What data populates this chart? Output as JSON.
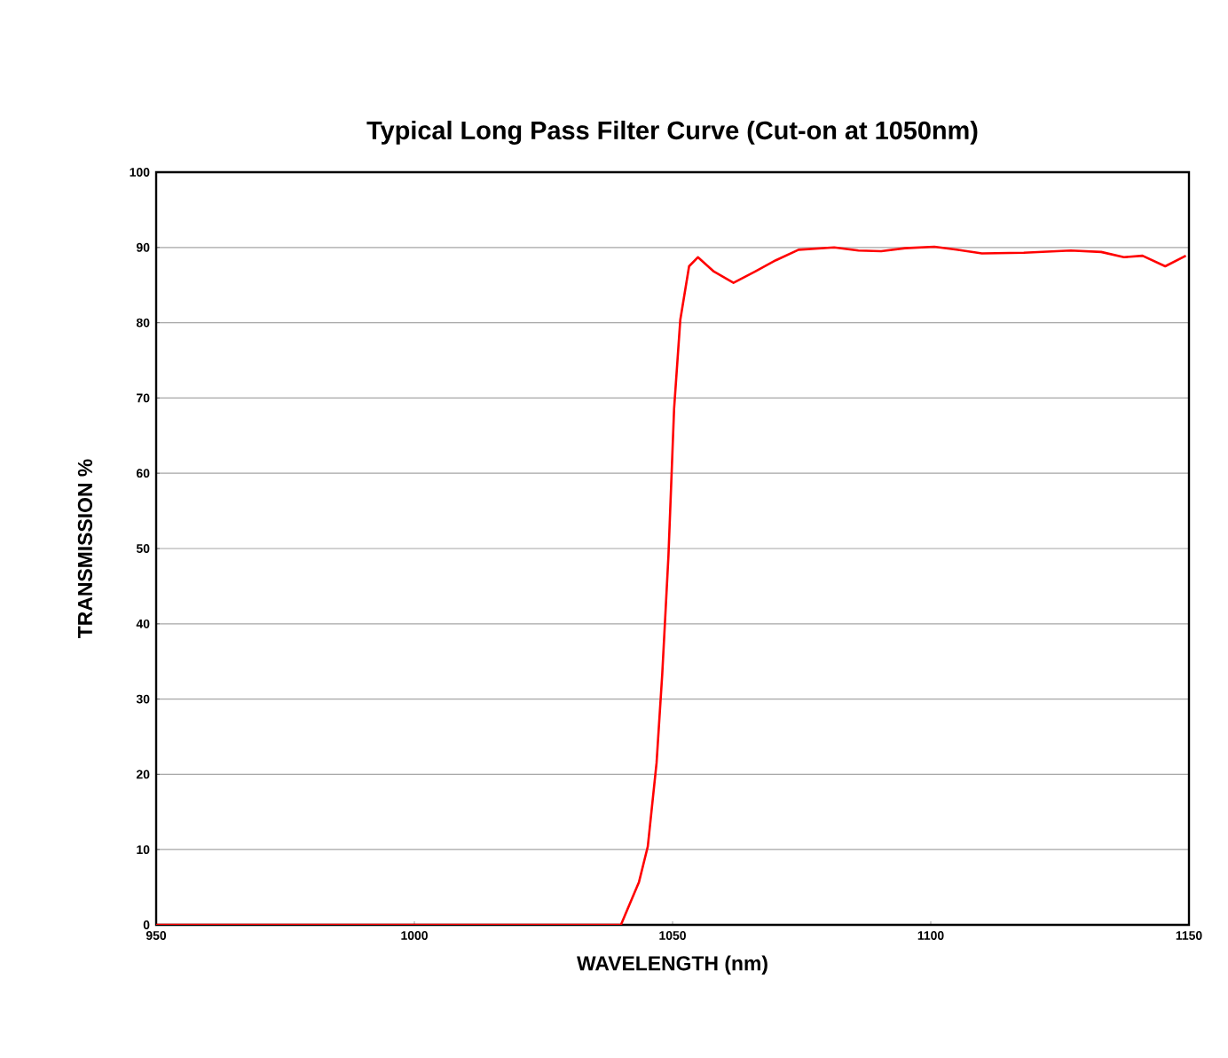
{
  "chart_data": {
    "type": "line",
    "title": "Typical Long Pass Filter Curve (Cut-on at 1050nm)",
    "xlabel": "WAVELENGTH (nm)",
    "ylabel": "TRANSMISSION %",
    "x": [
      950,
      1040.0,
      1043.5,
      1045.2,
      1046.9,
      1048.0,
      1049.2,
      1050.3,
      1051.5,
      1053.2,
      1054.9,
      1058,
      1061.8,
      1066,
      1070,
      1074.4,
      1081.3,
      1086,
      1090.4,
      1095,
      1100.7,
      1105,
      1109.9,
      1118,
      1127.1,
      1133,
      1137.4,
      1141,
      1145.4,
      1149.4
    ],
    "series": [
      {
        "color": "#ff0000",
        "values": [
          0,
          0,
          5.7,
          10.4,
          21.5,
          33.3,
          49,
          68.6,
          80.4,
          87.5,
          88.7,
          86.8,
          85.3,
          86.8,
          88.3,
          89.7,
          90.0,
          89.6,
          89.5,
          89.9,
          90.1,
          89.7,
          89.2,
          89.3,
          89.6,
          89.4,
          88.7,
          88.9,
          87.5,
          88.9
        ]
      }
    ],
    "xlim": [
      950,
      1150
    ],
    "ylim": [
      0,
      100
    ],
    "xticks": [
      950,
      1000,
      1050,
      1100,
      1150
    ],
    "yticks": [
      0,
      10,
      20,
      30,
      40,
      50,
      60,
      70,
      80,
      90,
      100
    ],
    "grid": "y",
    "marker": "none",
    "line_style": "solid"
  }
}
